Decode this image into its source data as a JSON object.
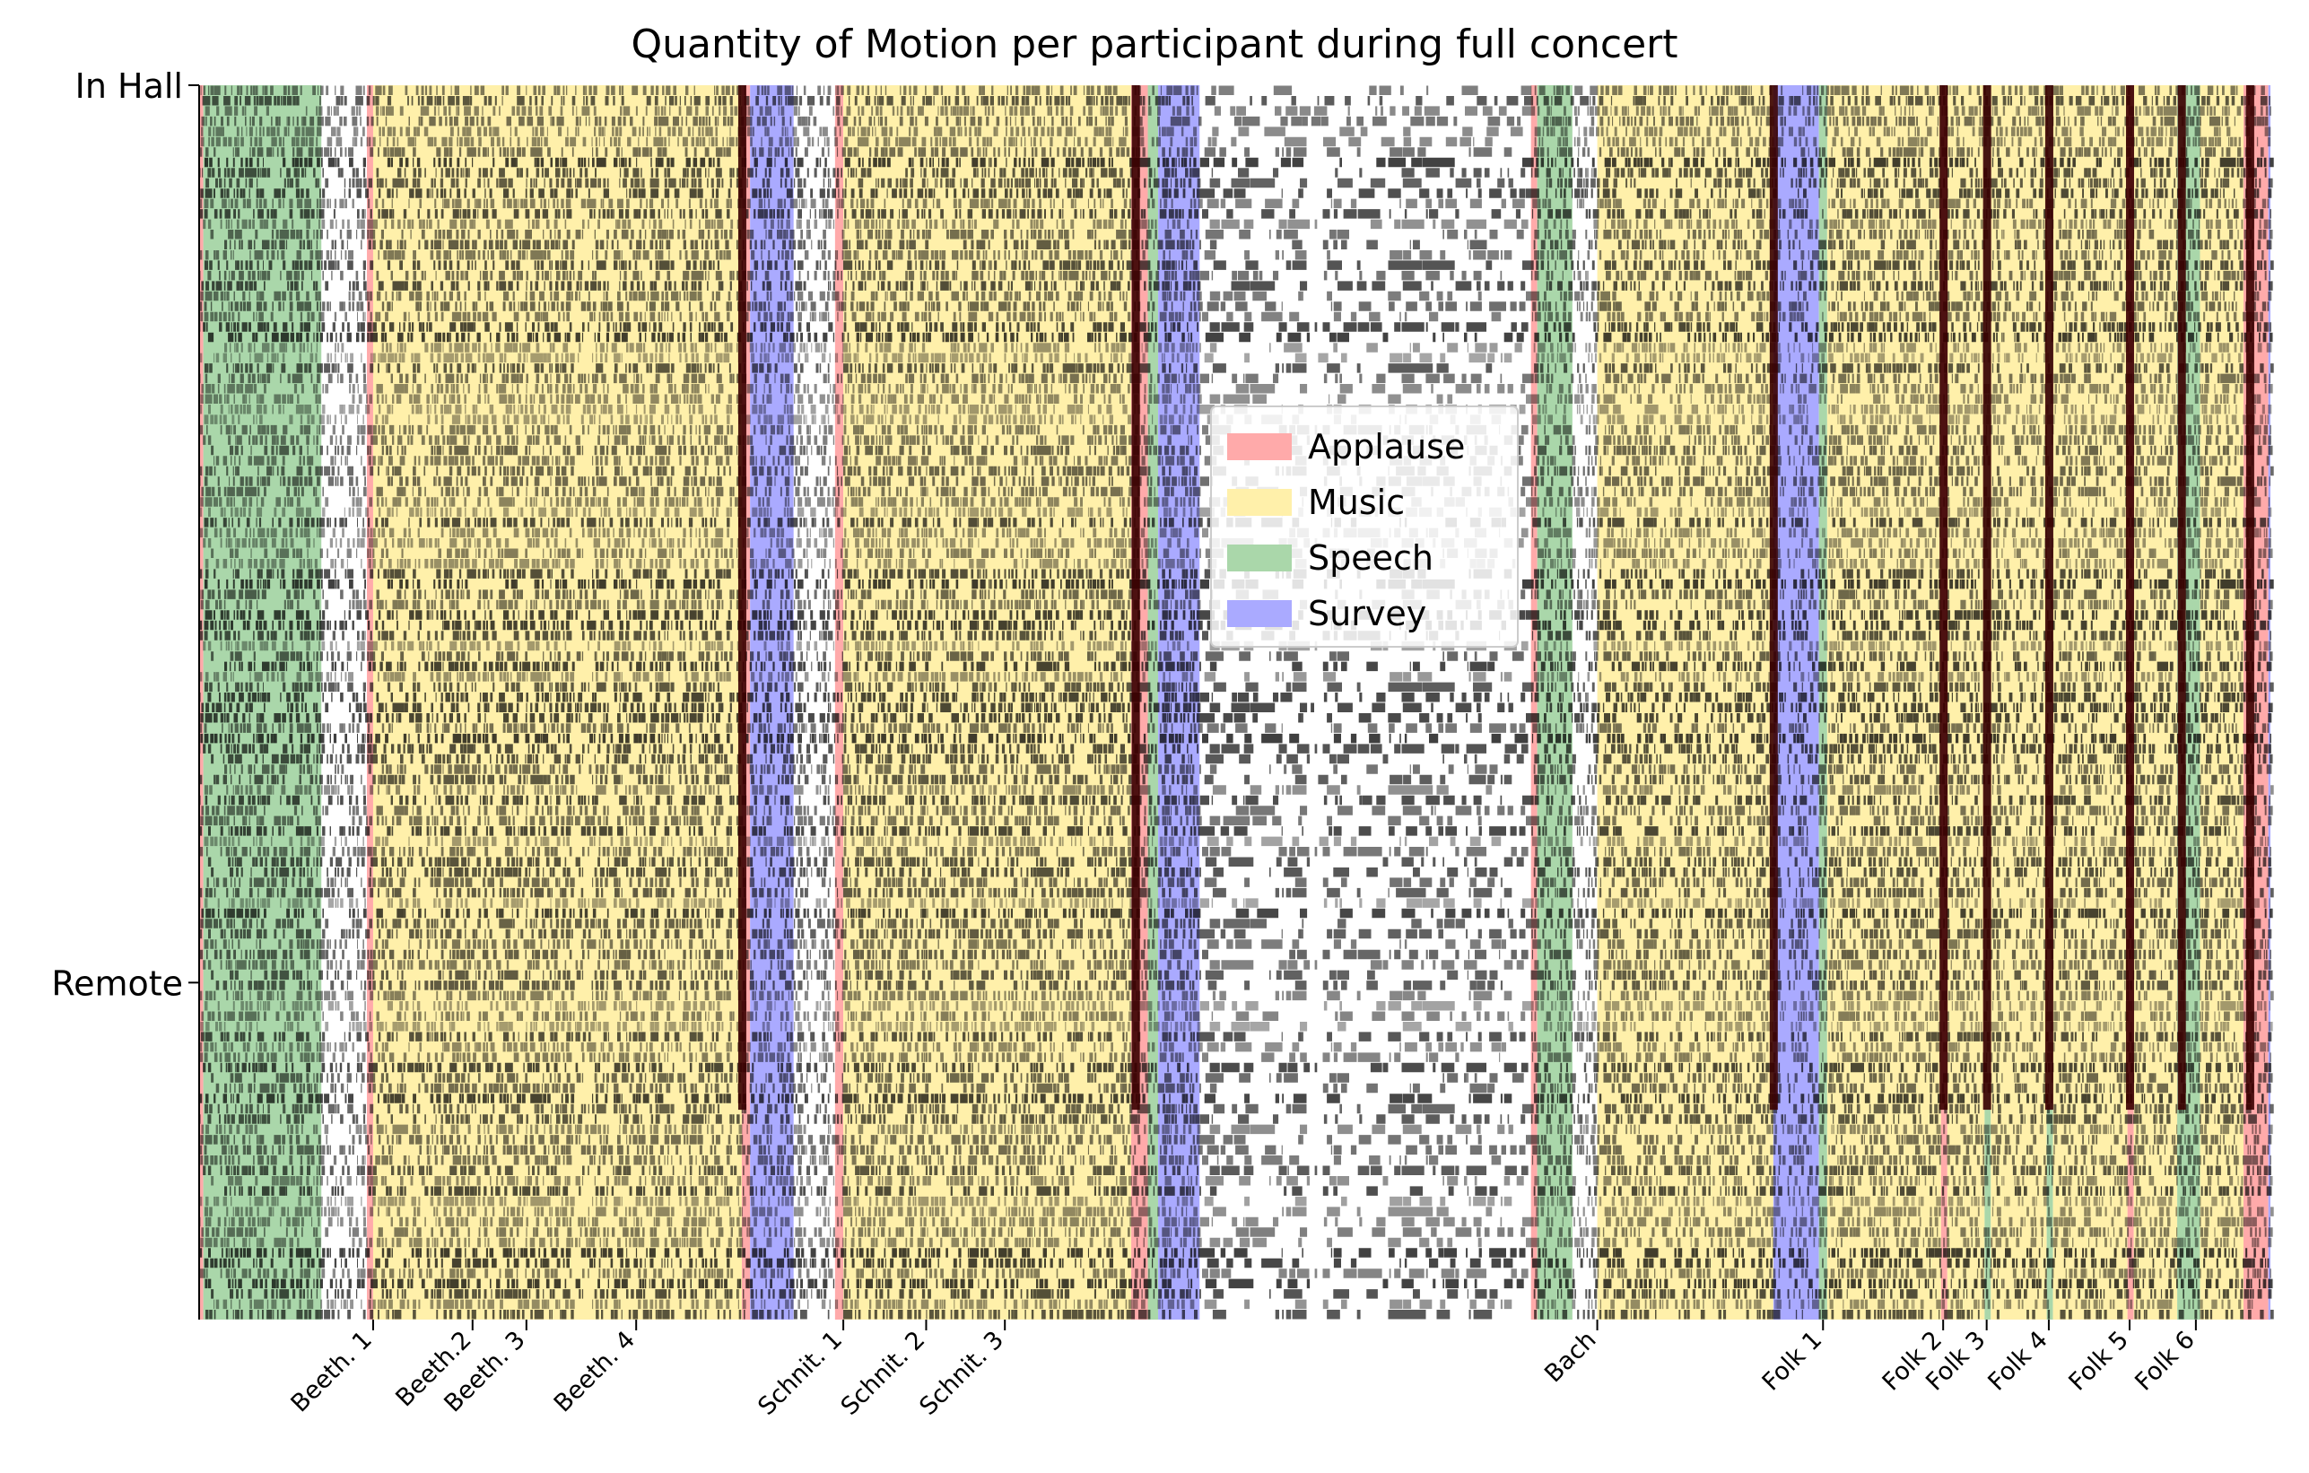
{
  "chart_data": {
    "type": "heatmap",
    "title": "Quantity of Motion per participant during full concert",
    "xlabel": "",
    "ylabel": "",
    "y_tick_labels": [
      "In Hall",
      "Remote"
    ],
    "x_tick_labels": [
      "Beeth. 1",
      "Beeth.2",
      "Beeth. 3",
      "Beeth. 4",
      "Schnit. 1",
      "Schnit. 2",
      "Schnit. 3",
      "Bach",
      "Folk 1",
      "Folk 2",
      "Folk 3",
      "Folk 4",
      "Folk 5",
      "Folk 6"
    ],
    "x_tick_positions": [
      0.084,
      0.132,
      0.158,
      0.211,
      0.311,
      0.351,
      0.389,
      0.675,
      0.784,
      0.842,
      0.863,
      0.893,
      0.932,
      0.964
    ],
    "group_split_fraction": 0.727,
    "legend": [
      {
        "label": "Applause",
        "color": "#ffaaaa"
      },
      {
        "label": "Music",
        "color": "#fff0aa"
      },
      {
        "label": "Speech",
        "color": "#aad7aa"
      },
      {
        "label": "Survey",
        "color": "#aaaaff"
      }
    ],
    "legend_location": "center",
    "segments": [
      {
        "category": "Applause",
        "start": 0.0,
        "end": 0.002
      },
      {
        "category": "Speech",
        "start": 0.002,
        "end": 0.059
      },
      {
        "category": "Applause",
        "start": 0.081,
        "end": 0.084
      },
      {
        "category": "Music",
        "start": 0.084,
        "end": 0.262
      },
      {
        "category": "Applause",
        "start": 0.262,
        "end": 0.266
      },
      {
        "category": "Survey",
        "start": 0.266,
        "end": 0.287
      },
      {
        "category": "Applause",
        "start": 0.307,
        "end": 0.311
      },
      {
        "category": "Music",
        "start": 0.311,
        "end": 0.45
      },
      {
        "category": "Applause",
        "start": 0.45,
        "end": 0.458
      },
      {
        "category": "Speech",
        "start": 0.458,
        "end": 0.463
      },
      {
        "category": "Survey",
        "start": 0.463,
        "end": 0.483
      },
      {
        "category": "Applause",
        "start": 0.643,
        "end": 0.646
      },
      {
        "category": "Speech",
        "start": 0.646,
        "end": 0.663
      },
      {
        "category": "Music",
        "start": 0.675,
        "end": 0.76
      },
      {
        "category": "Survey",
        "start": 0.76,
        "end": 0.782
      },
      {
        "category": "Speech",
        "start": 0.782,
        "end": 0.786
      },
      {
        "category": "Music",
        "start": 0.786,
        "end": 0.841
      },
      {
        "category": "Applause",
        "start": 0.841,
        "end": 0.844
      },
      {
        "category": "Music",
        "start": 0.844,
        "end": 0.862
      },
      {
        "category": "Speech",
        "start": 0.862,
        "end": 0.865
      },
      {
        "category": "Music",
        "start": 0.865,
        "end": 0.892
      },
      {
        "category": "Speech",
        "start": 0.892,
        "end": 0.895
      },
      {
        "category": "Music",
        "start": 0.895,
        "end": 0.931
      },
      {
        "category": "Applause",
        "start": 0.931,
        "end": 0.934
      },
      {
        "category": "Music",
        "start": 0.934,
        "end": 0.955
      },
      {
        "category": "Speech",
        "start": 0.955,
        "end": 0.966
      },
      {
        "category": "Music",
        "start": 0.966,
        "end": 0.987
      },
      {
        "category": "Applause",
        "start": 0.987,
        "end": 0.999
      },
      {
        "category": "Survey",
        "start": 0.999,
        "end": 1.0
      }
    ],
    "motion_activity": {
      "rows": 120,
      "texture": "dense per-participant motion streaks; darkest during applause",
      "dark_columns": [
        0.262,
        0.452,
        0.76,
        0.842,
        0.863,
        0.893,
        0.932,
        0.957,
        0.99
      ],
      "sparse_region": [
        0.483,
        0.643
      ]
    }
  }
}
